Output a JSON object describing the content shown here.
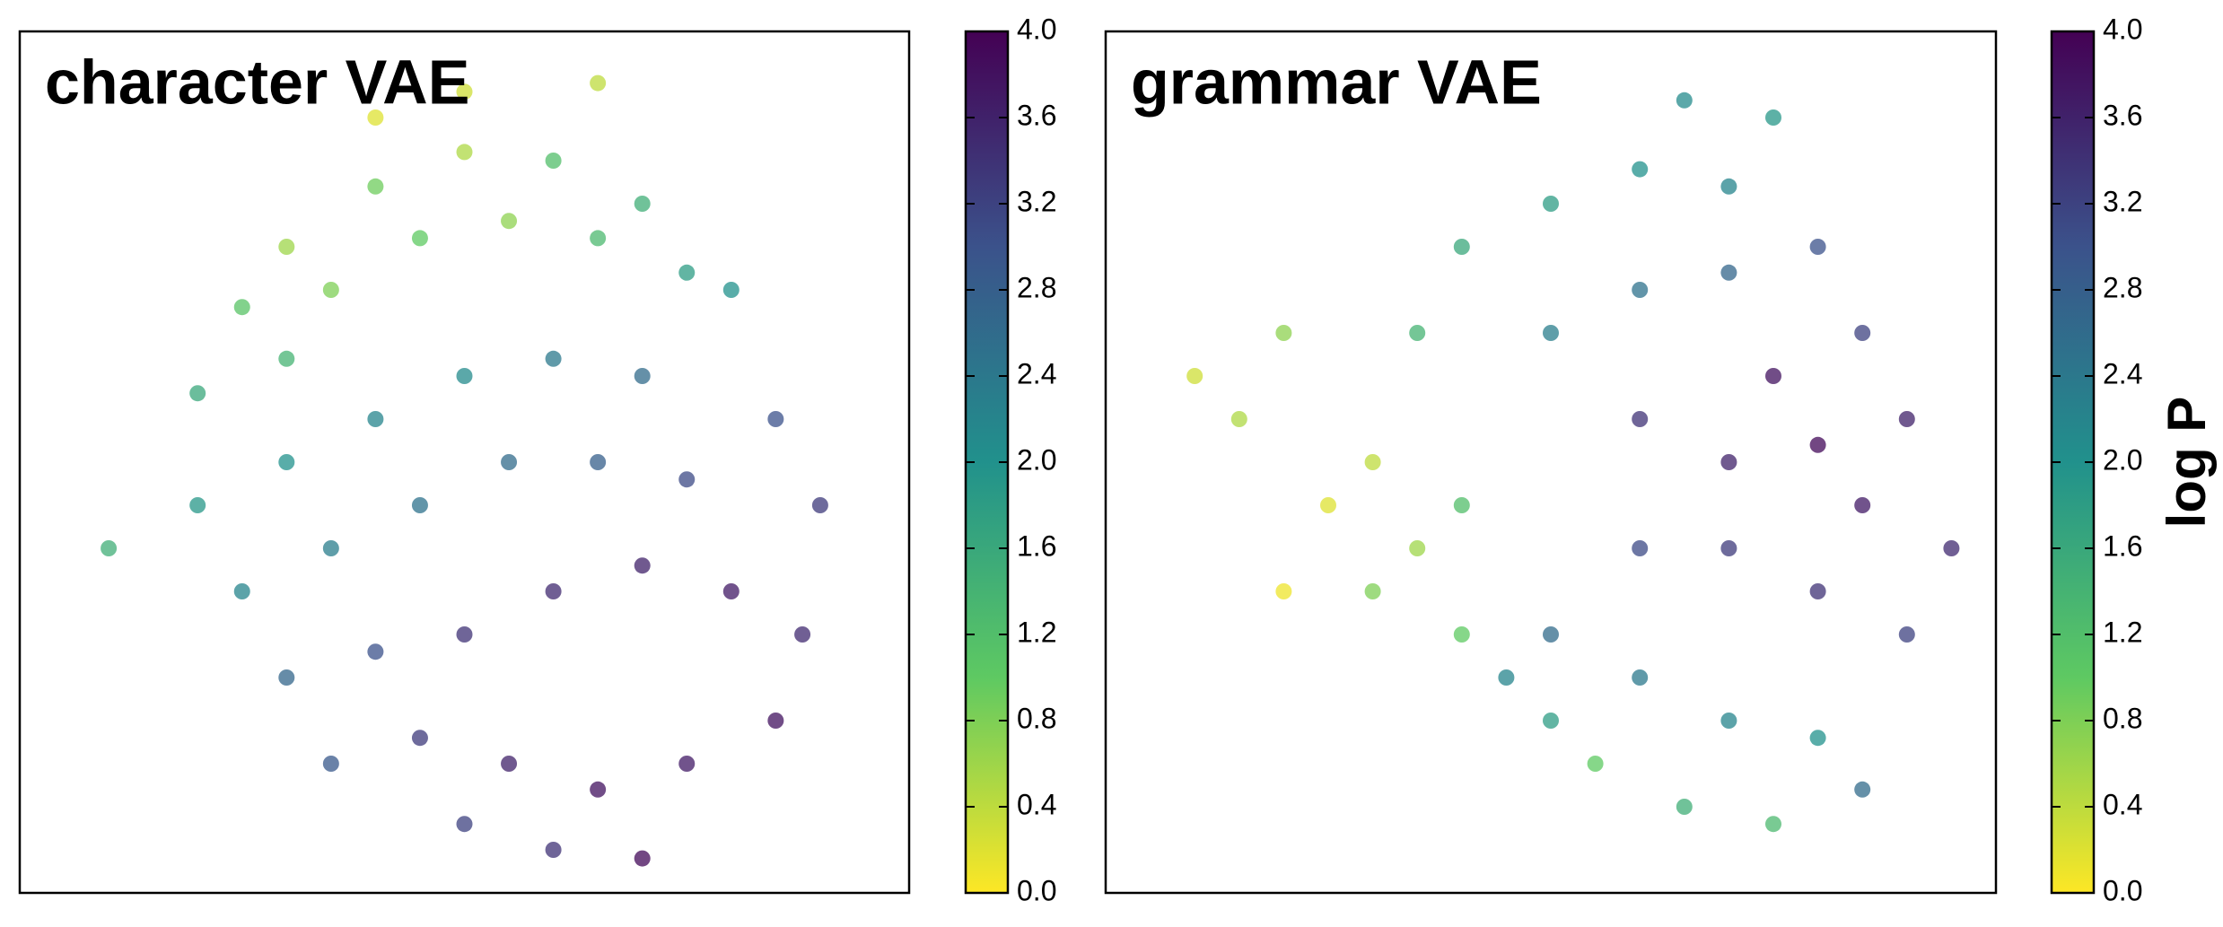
{
  "chart_data": [
    {
      "type": "scatter",
      "title": "character VAE",
      "xlim": [
        0,
        10
      ],
      "ylim": [
        0,
        10
      ],
      "clim": [
        0,
        4
      ],
      "colormap": [
        "#fde725",
        "#5ec962",
        "#21918c",
        "#3b528b",
        "#440154"
      ],
      "cticks": [
        {
          "value": 0,
          "label": "0.0"
        },
        0.4,
        0.8,
        1.2,
        1.6,
        {
          "value": 2,
          "label": "2.0"
        },
        2.4,
        2.8,
        3.2,
        3.6,
        {
          "value": 4,
          "label": "4.0"
        }
      ],
      "x": [
        3,
        4,
        5,
        6,
        7,
        8,
        2.5,
        3.5,
        4.5,
        5.5,
        6.5,
        7.5,
        2,
        3,
        5,
        6.5,
        4,
        3,
        4,
        5,
        6,
        7,
        8.5,
        2,
        3.5,
        4.5,
        5.5,
        6.5,
        7.5,
        9,
        1,
        2.5,
        3,
        4,
        5,
        6,
        7,
        8,
        8.8,
        4.5,
        5.5,
        6.5,
        7.5,
        3.5,
        6,
        7,
        5,
        8.5
      ],
      "y": [
        7.5,
        8.2,
        8.6,
        8.5,
        8,
        7,
        6.8,
        7,
        7.6,
        7.8,
        7.6,
        7.2,
        5.8,
        6.2,
        9.3,
        9.4,
        9,
        5,
        5.5,
        6,
        6.2,
        6,
        5.5,
        4.5,
        4,
        4.5,
        5,
        5,
        4.8,
        4.5,
        4,
        3.5,
        2.5,
        2.8,
        3,
        3.5,
        3.8,
        3.5,
        3,
        1.8,
        1.5,
        1.2,
        1.5,
        1.5,
        0.5,
        0.4,
        0.8,
        2
      ],
      "c": [
        0.6,
        0.9,
        0.5,
        1.2,
        1.5,
        2.0,
        1.1,
        0.8,
        1.0,
        0.7,
        1.3,
        1.8,
        1.6,
        1.4,
        0.3,
        0.4,
        0.2,
        2.0,
        2.2,
        2.1,
        2.4,
        2.6,
        3.0,
        1.9,
        2.3,
        2.5,
        2.6,
        2.8,
        3.1,
        3.3,
        1.5,
        2.2,
        2.7,
        3.0,
        3.4,
        3.5,
        3.6,
        3.7,
        3.5,
        3.3,
        3.6,
        3.8,
        3.7,
        2.9,
        3.4,
        3.9,
        3.2,
        3.8
      ]
    },
    {
      "type": "scatter",
      "title": "grammar VAE",
      "clabel": "log P",
      "xlim": [
        0,
        10
      ],
      "ylim": [
        0,
        10
      ],
      "clim": [
        0,
        4
      ],
      "colormap": [
        "#fde725",
        "#5ec962",
        "#21918c",
        "#3b528b",
        "#440154"
      ],
      "cticks": [
        {
          "value": 0,
          "label": "0.0"
        },
        0.4,
        0.8,
        1.2,
        1.6,
        {
          "value": 2,
          "label": "2.0"
        },
        2.4,
        2.8,
        3.2,
        3.6,
        {
          "value": 4,
          "label": "4.0"
        }
      ],
      "x": [
        1,
        1.5,
        2,
        2.5,
        3,
        3.5,
        2,
        3,
        4,
        4,
        3.5,
        4,
        5,
        6,
        7,
        6.5,
        7.5,
        5,
        6,
        7,
        8,
        8.5,
        6,
        7,
        7.5,
        8,
        8.5,
        9,
        9.5,
        7,
        8,
        6,
        9,
        5,
        6,
        7,
        8,
        6.5,
        7.5,
        5.5,
        8.5,
        5,
        4.5
      ],
      "y": [
        6,
        5.5,
        6.5,
        4.5,
        5,
        4,
        3.5,
        3.5,
        4.5,
        3,
        6.5,
        7.5,
        8,
        8.4,
        8.2,
        9.2,
        9,
        6.5,
        7,
        7.2,
        7.5,
        6.5,
        5.5,
        5,
        6,
        5.2,
        4.5,
        5.5,
        4,
        4,
        3.5,
        4,
        3,
        3,
        2.5,
        2,
        1.8,
        1,
        0.8,
        1.5,
        1.2,
        2,
        2.5
      ],
      "c": [
        0.3,
        0.5,
        0.7,
        0.2,
        0.4,
        0.6,
        0.1,
        0.8,
        1.2,
        1.0,
        1.4,
        1.6,
        1.8,
        2.0,
        2.2,
        2.1,
        1.9,
        2.3,
        2.5,
        2.7,
        3.0,
        3.2,
        3.4,
        3.6,
        3.8,
        3.9,
        3.7,
        3.6,
        3.5,
        3.3,
        3.4,
        3.1,
        3.2,
        2.6,
        2.4,
        2.2,
        2.0,
        1.5,
        1.3,
        1.0,
        2.6,
        1.8,
        2.2
      ]
    }
  ]
}
